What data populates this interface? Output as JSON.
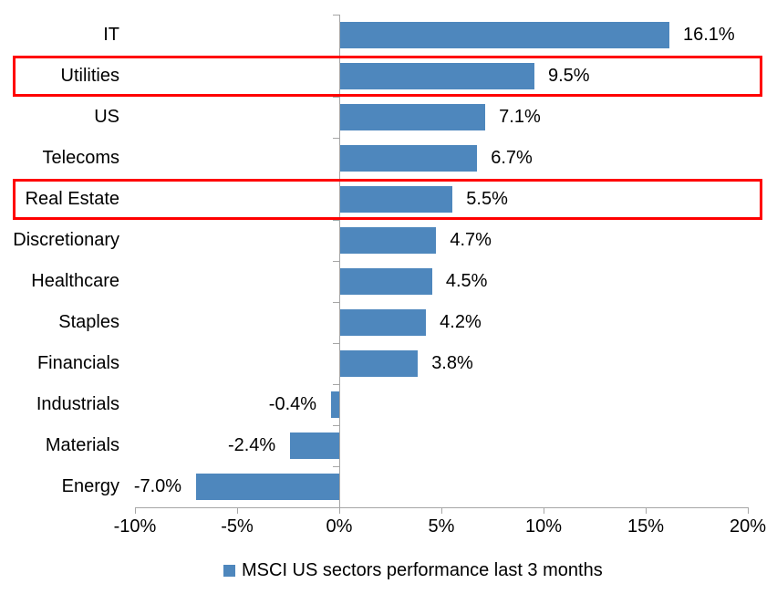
{
  "chart_data": {
    "type": "bar",
    "orientation": "horizontal",
    "title": "",
    "categories": [
      "IT",
      "Utilities",
      "US",
      "Telecoms",
      "Real Estate",
      "Discretionary",
      "Healthcare",
      "Staples",
      "Financials",
      "Industrials",
      "Materials",
      "Energy"
    ],
    "values": [
      16.1,
      9.5,
      7.1,
      6.7,
      5.5,
      4.7,
      4.5,
      4.2,
      3.8,
      -0.4,
      -2.4,
      -7.0
    ],
    "value_labels": [
      "16.1%",
      "9.5%",
      "7.1%",
      "6.7%",
      "5.5%",
      "4.7%",
      "4.5%",
      "4.2%",
      "3.8%",
      "-0.4%",
      "-2.4%",
      "-7.0%"
    ],
    "highlighted_categories": [
      "Utilities",
      "Real Estate"
    ],
    "highlight_color": "#ff0000",
    "bar_color": "#4e87bd",
    "axis_color": "#a6a6a6",
    "text_color": "#000000",
    "x_axis": {
      "min": -10,
      "max": 20,
      "ticks": [
        -10,
        -5,
        0,
        5,
        10,
        15,
        20
      ],
      "tick_labels": [
        "-10%",
        "-5%",
        "0%",
        "5%",
        "10%",
        "15%",
        "20%"
      ],
      "gridlines": false
    },
    "legend": {
      "position": "bottom",
      "label": "MSCI US sectors performance last 3 months",
      "marker_color": "#4e87bd",
      "marker_icon": "legend-square-icon"
    }
  }
}
